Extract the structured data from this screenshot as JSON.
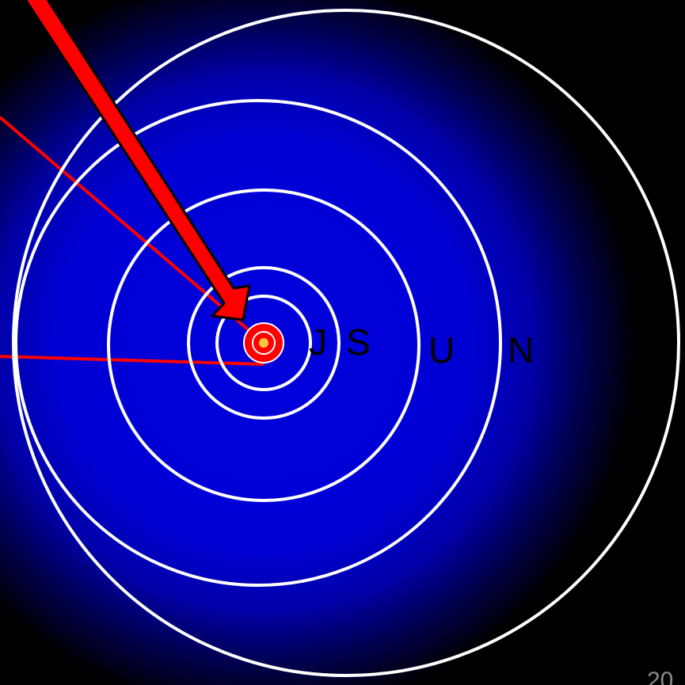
{
  "diagram": {
    "colors": {
      "background": "#000000",
      "glow_center": "#0000dc",
      "orbit_stroke": "#ffffff",
      "pointer_red": "#ff0000",
      "sun_core": "#f5c842"
    },
    "orbit_labels": [
      {
        "key": "jupiter",
        "text": "J"
      },
      {
        "key": "saturn",
        "text": "S"
      },
      {
        "key": "uranus",
        "text": "U"
      },
      {
        "key": "neptune",
        "text": "N"
      }
    ],
    "page_number": "20"
  }
}
